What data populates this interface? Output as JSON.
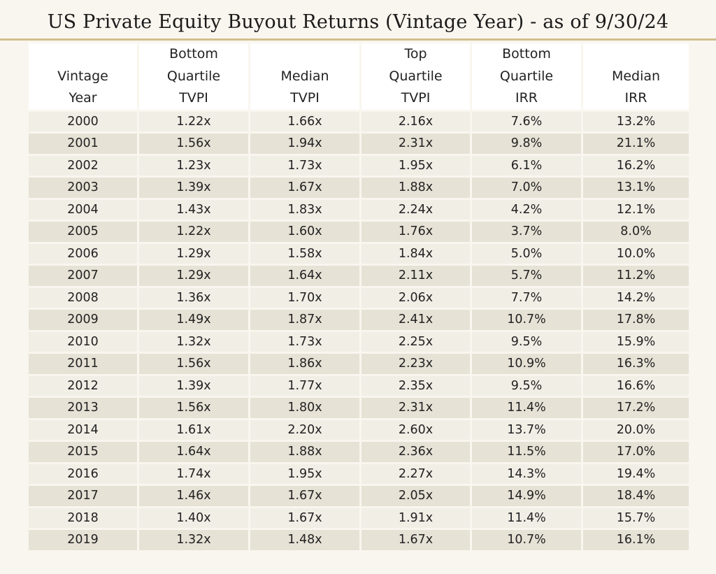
{
  "title": "US Private Equity Buyout Returns (Vintage Year) - as of 9/30/24",
  "chart_data": {
    "type": "table",
    "title": "US Private Equity Buyout Returns (Vintage Year) - as of 9/30/24",
    "columns": [
      [
        "Vintage",
        "Year"
      ],
      [
        "Bottom",
        "Quartile",
        "TVPI"
      ],
      [
        "Median",
        "TVPI"
      ],
      [
        "Top",
        "Quartile",
        "TVPI"
      ],
      [
        "Bottom",
        "Quartile",
        "IRR"
      ],
      [
        "Median",
        "IRR"
      ]
    ],
    "rows": [
      [
        "2000",
        "1.22x",
        "1.66x",
        "2.16x",
        "7.6%",
        "13.2%"
      ],
      [
        "2001",
        "1.56x",
        "1.94x",
        "2.31x",
        "9.8%",
        "21.1%"
      ],
      [
        "2002",
        "1.23x",
        "1.73x",
        "1.95x",
        "6.1%",
        "16.2%"
      ],
      [
        "2003",
        "1.39x",
        "1.67x",
        "1.88x",
        "7.0%",
        "13.1%"
      ],
      [
        "2004",
        "1.43x",
        "1.83x",
        "2.24x",
        "4.2%",
        "12.1%"
      ],
      [
        "2005",
        "1.22x",
        "1.60x",
        "1.76x",
        "3.7%",
        "8.0%"
      ],
      [
        "2006",
        "1.29x",
        "1.58x",
        "1.84x",
        "5.0%",
        "10.0%"
      ],
      [
        "2007",
        "1.29x",
        "1.64x",
        "2.11x",
        "5.7%",
        "11.2%"
      ],
      [
        "2008",
        "1.36x",
        "1.70x",
        "2.06x",
        "7.7%",
        "14.2%"
      ],
      [
        "2009",
        "1.49x",
        "1.87x",
        "2.41x",
        "10.7%",
        "17.8%"
      ],
      [
        "2010",
        "1.32x",
        "1.73x",
        "2.25x",
        "9.5%",
        "15.9%"
      ],
      [
        "2011",
        "1.56x",
        "1.86x",
        "2.23x",
        "10.9%",
        "16.3%"
      ],
      [
        "2012",
        "1.39x",
        "1.77x",
        "2.35x",
        "9.5%",
        "16.6%"
      ],
      [
        "2013",
        "1.56x",
        "1.80x",
        "2.31x",
        "11.4%",
        "17.2%"
      ],
      [
        "2014",
        "1.61x",
        "2.20x",
        "2.60x",
        "13.7%",
        "20.0%"
      ],
      [
        "2015",
        "1.64x",
        "1.88x",
        "2.36x",
        "11.5%",
        "17.0%"
      ],
      [
        "2016",
        "1.74x",
        "1.95x",
        "2.27x",
        "14.3%",
        "19.4%"
      ],
      [
        "2017",
        "1.46x",
        "1.67x",
        "2.05x",
        "14.9%",
        "18.4%"
      ],
      [
        "2018",
        "1.40x",
        "1.67x",
        "1.91x",
        "11.4%",
        "15.7%"
      ],
      [
        "2019",
        "1.32x",
        "1.48x",
        "1.67x",
        "10.7%",
        "16.1%"
      ]
    ]
  },
  "colors": {
    "background": "#f9f6ef",
    "title_rule": "#d2bf8e",
    "header_bg": "#ffffff",
    "row_light": "#f1eee6",
    "row_dark": "#e7e2d6"
  }
}
